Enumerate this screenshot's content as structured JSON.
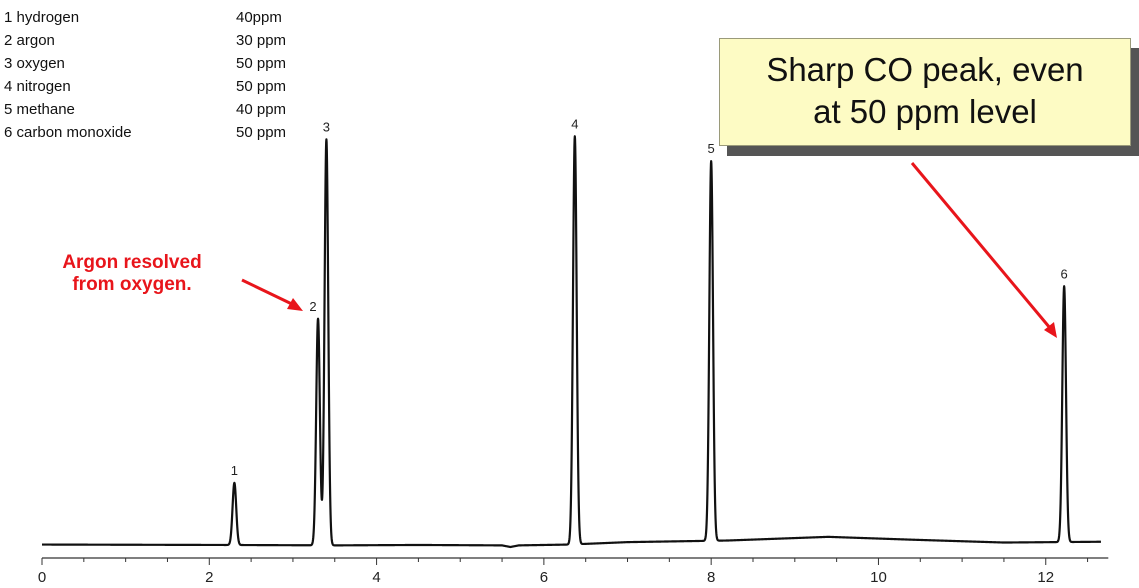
{
  "chart_data": {
    "type": "line",
    "title": "",
    "xlabel": "",
    "ylabel": "",
    "xlim": [
      0,
      12.7
    ],
    "ylim": [
      0,
      100
    ],
    "xticks": [
      0,
      2,
      4,
      6,
      8,
      10,
      12
    ],
    "grid": false,
    "baseline": [
      [
        0,
        0.6
      ],
      [
        2.2,
        0.5
      ],
      [
        3.5,
        0.4
      ],
      [
        4.5,
        0.5
      ],
      [
        5.5,
        0.4
      ],
      [
        5.6,
        0.0
      ],
      [
        5.7,
        0.4
      ],
      [
        6.3,
        0.6
      ],
      [
        7.0,
        1.2
      ],
      [
        8.2,
        1.6
      ],
      [
        9.4,
        2.5
      ],
      [
        10.4,
        1.8
      ],
      [
        11.5,
        1.1
      ],
      [
        12.7,
        1.3
      ]
    ],
    "peaks": [
      {
        "label": "1",
        "x": 2.3,
        "height": 15.3
      },
      {
        "label": "2",
        "x": 3.3,
        "height": 55.8
      },
      {
        "label": "3",
        "x": 3.4,
        "height": 100.0
      },
      {
        "label": "4",
        "x": 6.37,
        "height": 100.5
      },
      {
        "label": "5",
        "x": 8.0,
        "height": 93.5
      },
      {
        "label": "6",
        "x": 12.22,
        "height": 63.0
      }
    ]
  },
  "legend": [
    {
      "name": "1 hydrogen",
      "conc": "40ppm"
    },
    {
      "name": "2 argon",
      "conc": "30 ppm"
    },
    {
      "name": "3 oxygen",
      "conc": "50 ppm"
    },
    {
      "name": "4 nitrogen",
      "conc": "50 ppm"
    },
    {
      "name": "5 methane",
      "conc": "40 ppm"
    },
    {
      "name": "6 carbon monoxide",
      "conc": "50 ppm"
    }
  ],
  "callout": {
    "line1": "Sharp CO peak, even",
    "line2": "at 50 ppm level"
  },
  "annotation": {
    "line1": "Argon resolved",
    "line2": "from oxygen."
  },
  "colors": {
    "trace": "#111111",
    "annotation": "#e8151b",
    "callout_bg": "#fdfbc4"
  }
}
